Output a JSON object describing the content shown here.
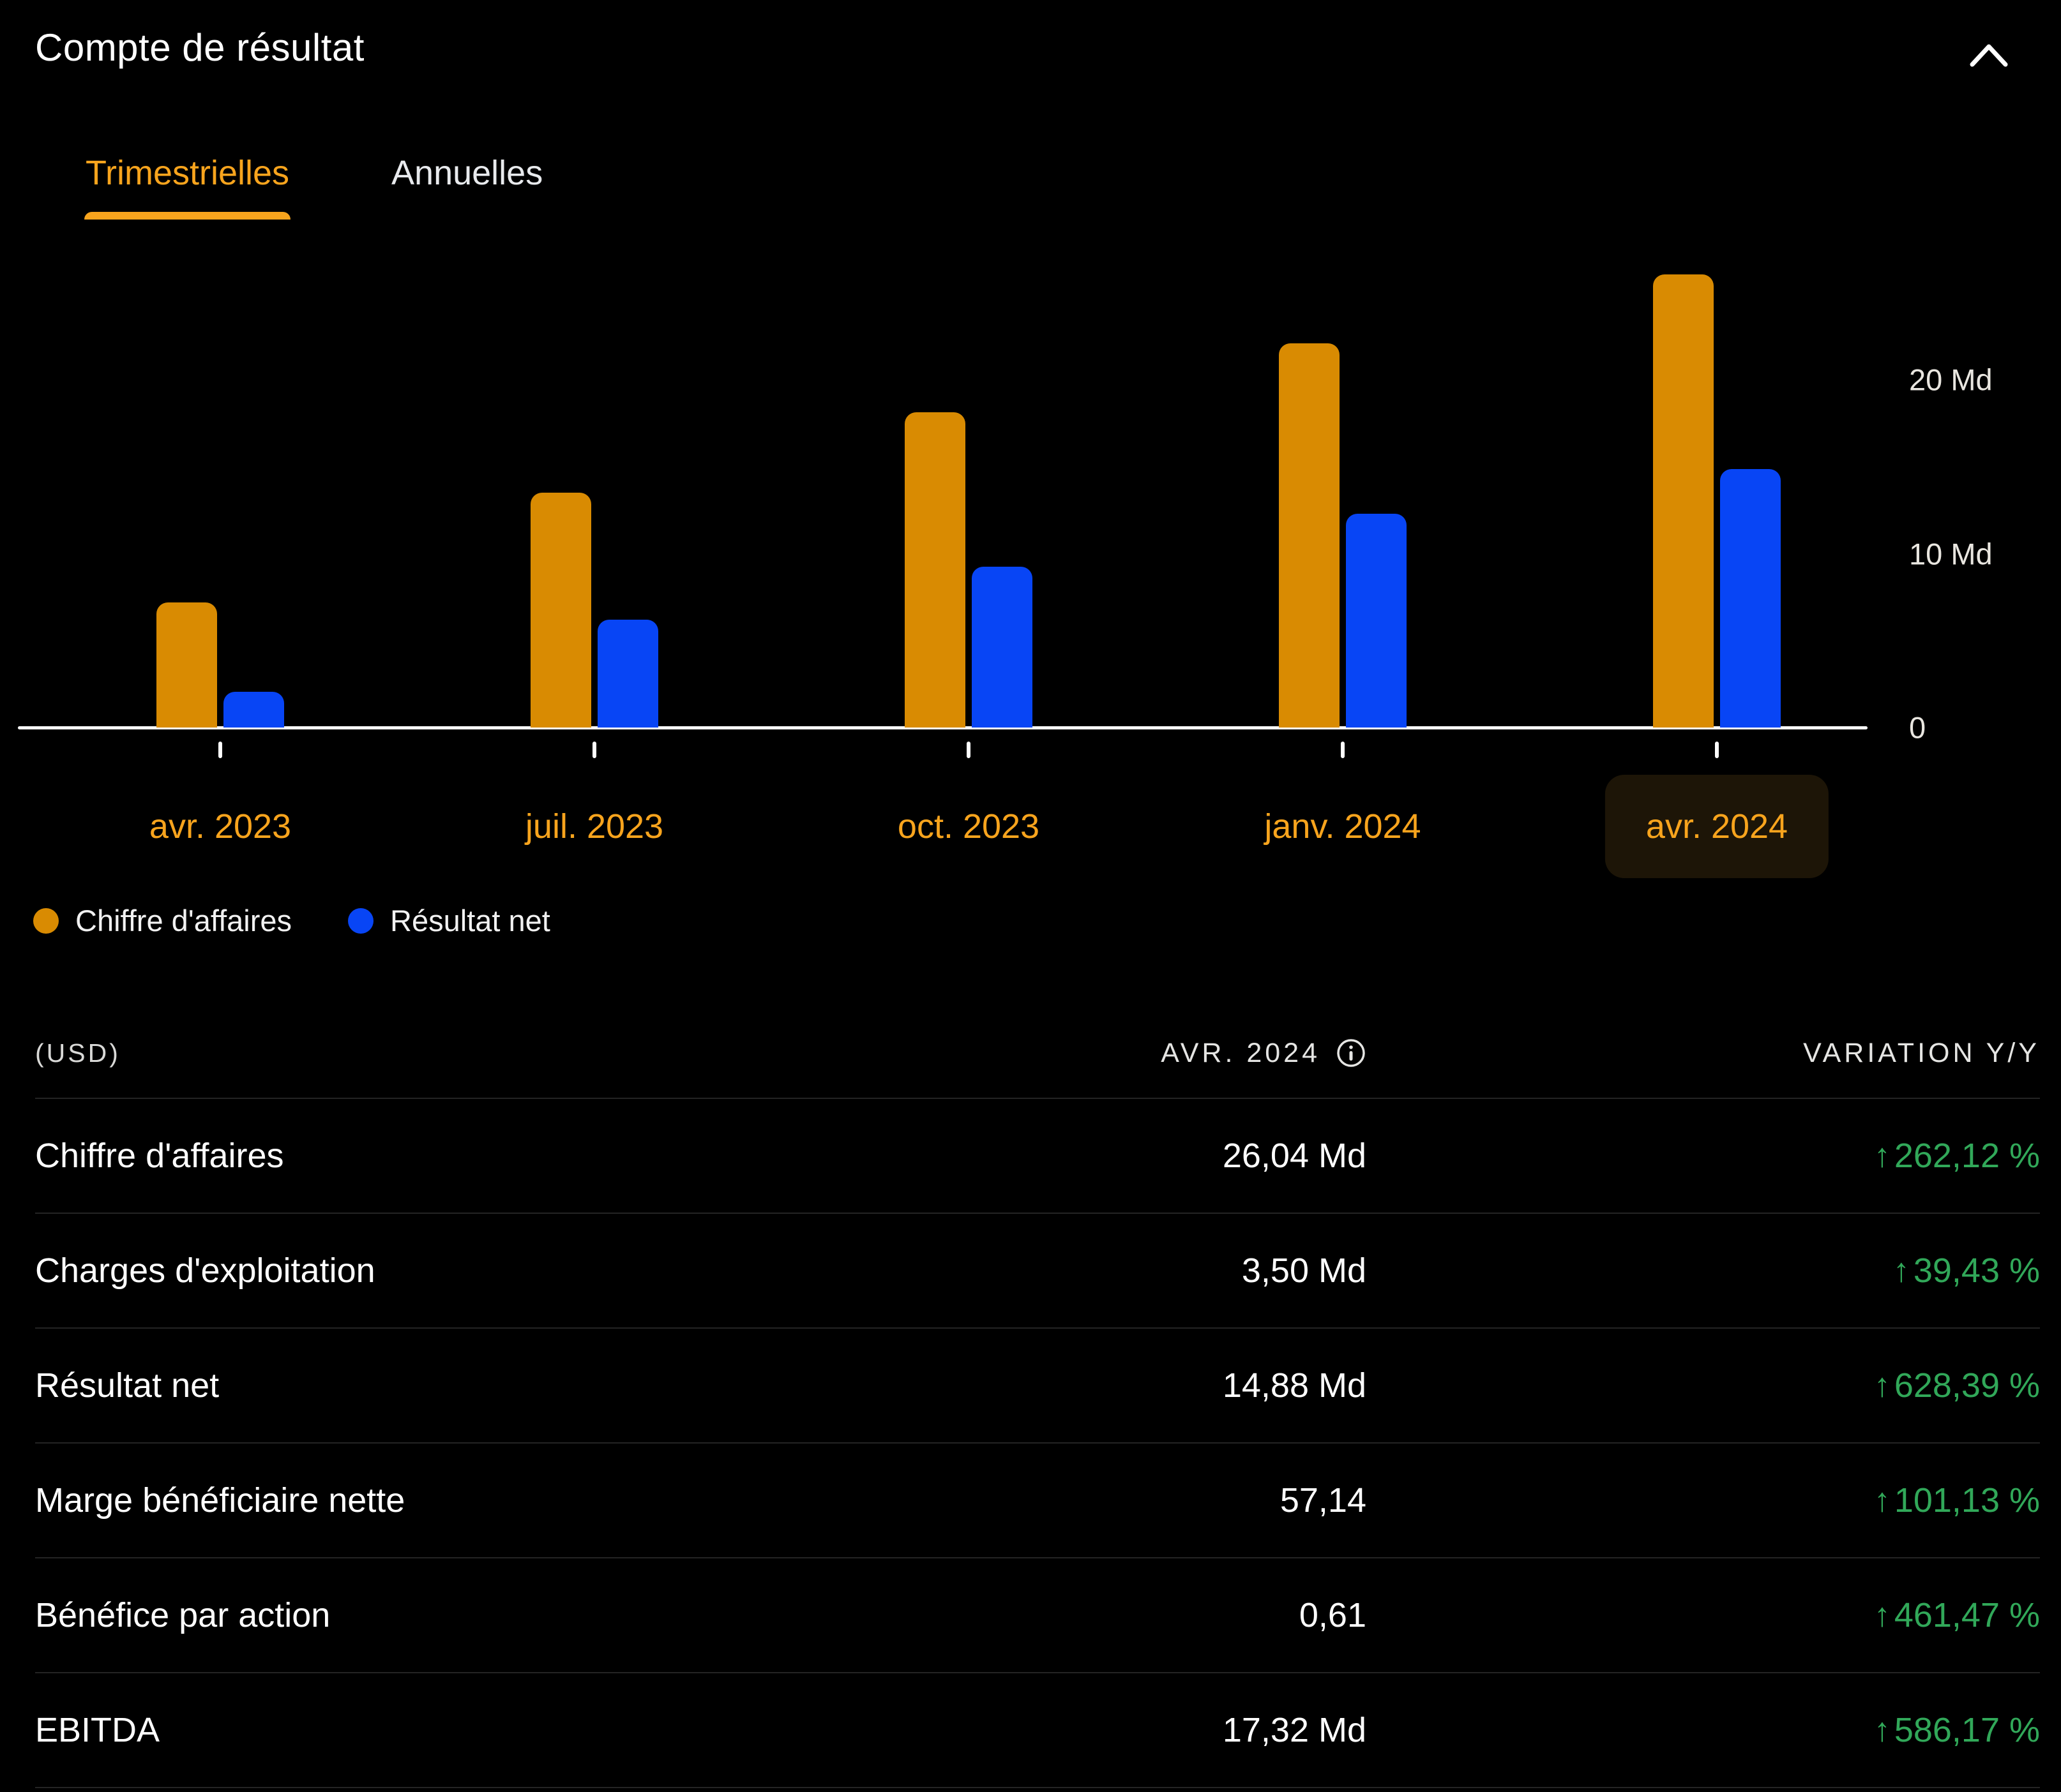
{
  "header": {
    "title": "Compte de résultat"
  },
  "tabs": {
    "quarterly": "Trimestrielles",
    "annual": "Annuelles",
    "active": "Trimestrielles"
  },
  "chart_data": {
    "type": "bar",
    "title": "Compte de résultat — Trimestrielles",
    "categories": [
      "avr. 2023",
      "juil. 2023",
      "oct. 2023",
      "janv. 2024",
      "avr. 2024"
    ],
    "series": [
      {
        "name": "Chiffre d'affaires",
        "color": "#D98B02",
        "values": [
          7.19,
          13.51,
          18.12,
          22.1,
          26.04
        ]
      },
      {
        "name": "Résultat net",
        "color": "#0845F5",
        "values": [
          2.04,
          6.19,
          9.24,
          12.29,
          14.88
        ]
      }
    ],
    "unit": "Md",
    "ylim": [
      0,
      27.5
    ],
    "y_ticks": [
      "20 Md",
      "10 Md",
      "0"
    ],
    "y_tick_values": [
      20,
      10,
      0
    ],
    "grid": false,
    "legend_position": "bottom-left",
    "selected_index": 4,
    "selected_category": "avr. 2024"
  },
  "table": {
    "currency_note": "(USD)",
    "period_header": "AVR. 2024",
    "variation_header": "VARIATION Y/Y",
    "up_arrow": "↑",
    "rows": [
      {
        "label": "Chiffre d'affaires",
        "value": "26,04 Md",
        "arrow": "↑",
        "variation": "262,12 %"
      },
      {
        "label": "Charges d'exploitation",
        "value": "3,50 Md",
        "arrow": "↑",
        "variation": "39,43 %"
      },
      {
        "label": "Résultat net",
        "value": "14,88 Md",
        "arrow": "↑",
        "variation": "628,39 %"
      },
      {
        "label": "Marge bénéficiaire nette",
        "value": "57,14",
        "arrow": "↑",
        "variation": "101,13 %"
      },
      {
        "label": "Bénéfice par action",
        "value": "0,61",
        "arrow": "↑",
        "variation": "461,47 %"
      },
      {
        "label": "EBITDA",
        "value": "17,32 Md",
        "arrow": "↑",
        "variation": "586,17 %"
      }
    ]
  },
  "colors": {
    "background": "#000000",
    "accent_orange": "#F8A41D",
    "bar_orange": "#D98B02",
    "bar_blue": "#0845F5",
    "positive_green": "#31A859",
    "divider": "#242424",
    "text_primary": "#FFFFFF",
    "text_secondary": "#E5E5E3"
  }
}
